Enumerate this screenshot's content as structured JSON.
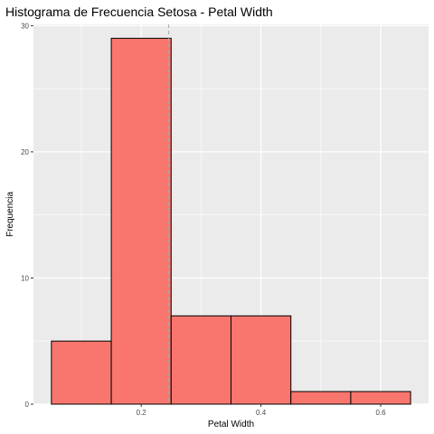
{
  "chart_data": {
    "type": "bar",
    "title": "Histograma de Frecuencia Setosa - Petal Width",
    "xlabel": "Petal Width",
    "ylabel": "Frequencia",
    "bins": [
      {
        "x0": 0.05,
        "x1": 0.15,
        "count": 5
      },
      {
        "x0": 0.15,
        "x1": 0.25,
        "count": 29
      },
      {
        "x0": 0.25,
        "x1": 0.35,
        "count": 7
      },
      {
        "x0": 0.35,
        "x1": 0.45,
        "count": 7
      },
      {
        "x0": 0.45,
        "x1": 0.55,
        "count": 1
      },
      {
        "x0": 0.55,
        "x1": 0.65,
        "count": 1
      }
    ],
    "xlim": [
      0.02,
      0.68
    ],
    "ylim": [
      0,
      30.1
    ],
    "xticks": [
      0.2,
      0.4,
      0.6
    ],
    "xtick_labels": [
      "0.2",
      "0.4",
      "0.6"
    ],
    "yticks": [
      0,
      10,
      20,
      30
    ],
    "ytick_labels": [
      "0",
      "10",
      "20",
      "30"
    ],
    "mean_line_x": 0.246,
    "grid": true,
    "legend": "none",
    "colors": {
      "bar_fill": "#F8766D",
      "bar_stroke": "#000000",
      "panel_bg": "#EBEBEB",
      "grid": "#FFFFFF",
      "mean_line": "#A9A9A9"
    }
  }
}
